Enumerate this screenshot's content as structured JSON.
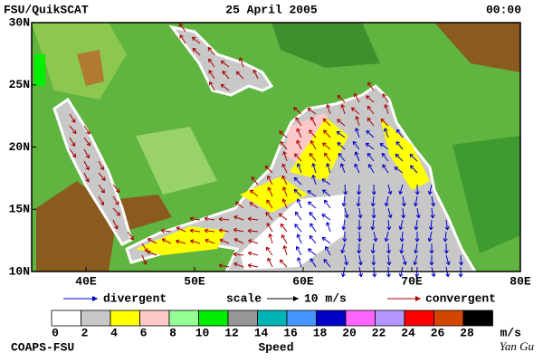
{
  "map": {
    "title_left": "FSU/QuikSCAT",
    "date": "25 April 2005",
    "time": "00:00",
    "xlim": [
      35,
      80
    ],
    "ylim": [
      10,
      30
    ],
    "xticks": [
      {
        "value": 40,
        "label": "40E"
      },
      {
        "value": 50,
        "label": "50E"
      },
      {
        "value": 60,
        "label": "60E"
      },
      {
        "value": 70,
        "label": "70E"
      },
      {
        "value": 80,
        "label": "80E"
      }
    ],
    "yticks": [
      {
        "value": 30,
        "label": "30N"
      },
      {
        "value": 25,
        "label": "25N"
      },
      {
        "value": 20,
        "label": "20N"
      },
      {
        "value": 15,
        "label": "15N"
      },
      {
        "value": 10,
        "label": "10N"
      }
    ]
  },
  "legend": {
    "divergent": "divergent",
    "divergent_color": "#0000cc",
    "scale": "scale",
    "scale_value": "10 m/s",
    "convergent": "convergent",
    "convergent_color": "#aa0000"
  },
  "colorbar": {
    "label": "Speed",
    "unit": "m/s",
    "ticks": [
      0,
      2,
      4,
      6,
      8,
      10,
      12,
      14,
      16,
      18,
      20,
      22,
      24,
      26,
      28
    ],
    "colors": [
      "#ffffff",
      "#c8c8c8",
      "#ffff00",
      "#ffc8c8",
      "#96ff96",
      "#00ee00",
      "#969696",
      "#00b4b4",
      "#4696ff",
      "#0000c8",
      "#ff64ff",
      "#b496ff",
      "#ff0000",
      "#d24600",
      "#000000"
    ]
  },
  "footer": {
    "left": "COAPS-FSU",
    "right": "Yan Gu"
  }
}
